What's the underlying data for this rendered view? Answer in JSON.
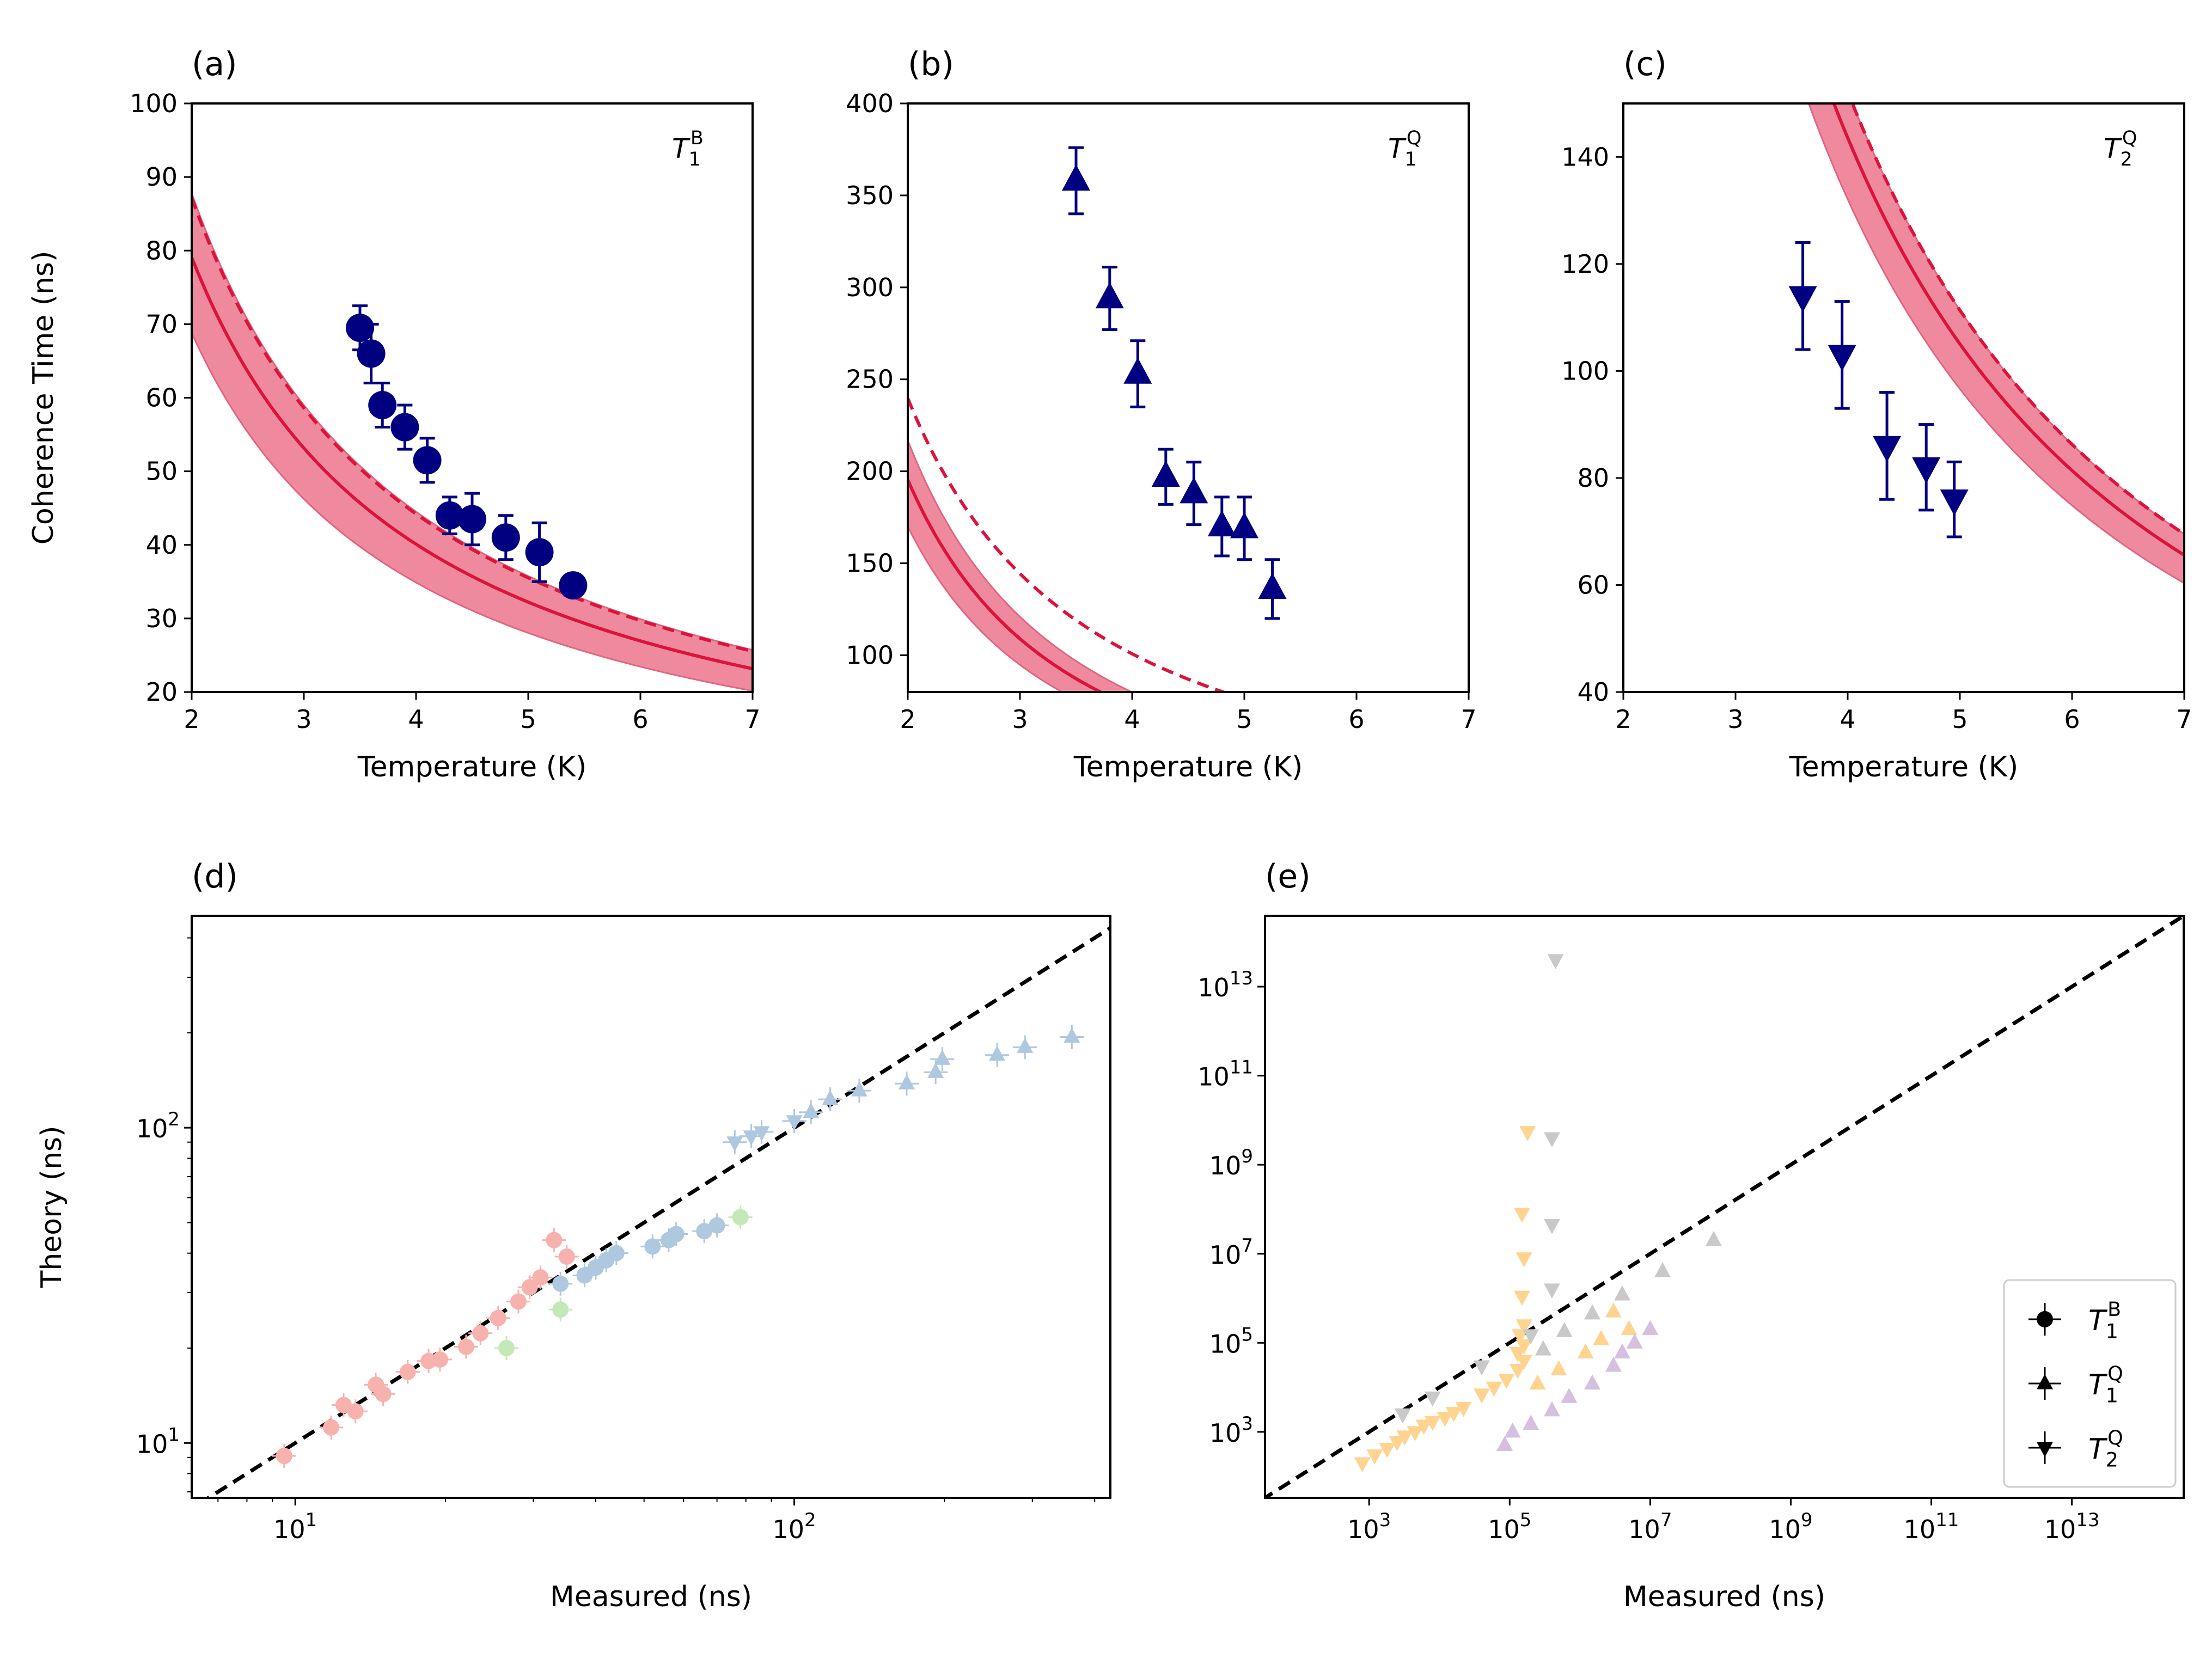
{
  "colors": {
    "fit": "#dc143c",
    "band_fill": "#ef8a9e",
    "band_edge": "#e06580",
    "data": "#000080",
    "identity": "#000000",
    "d_T1B": "#f7b2ae",
    "d_T1Q": "#aec8e0",
    "d_T2Q": "#c5e8b8",
    "e_T1B": "#ffd490",
    "e_T1Q": "#c9c9c9",
    "e_T2Q": "#d6c0e0"
  },
  "chart_data": [
    {
      "panel": "(a)",
      "type": "scatter",
      "title": "",
      "annotation": {
        "base": "T",
        "sub": "1",
        "sup": "B"
      },
      "xlabel": "Temperature (K)",
      "ylabel": "Coherence Time (ns)",
      "xlim": [
        2,
        7
      ],
      "ylim": [
        20,
        100
      ],
      "xticks": [
        2,
        3,
        4,
        5,
        6,
        7
      ],
      "yticks": [
        20,
        30,
        40,
        50,
        60,
        70,
        80,
        90,
        100
      ],
      "marker": "circle",
      "points": [
        {
          "x": 3.5,
          "y": 69.5,
          "err": 3
        },
        {
          "x": 3.6,
          "y": 66.0,
          "err": 4
        },
        {
          "x": 3.7,
          "y": 59.0,
          "err": 3
        },
        {
          "x": 3.9,
          "y": 56.0,
          "err": 3
        },
        {
          "x": 4.1,
          "y": 51.5,
          "err": 3
        },
        {
          "x": 4.3,
          "y": 44.0,
          "err": 2.5
        },
        {
          "x": 4.5,
          "y": 43.5,
          "err": 3.5
        },
        {
          "x": 4.8,
          "y": 41.0,
          "err": 3
        },
        {
          "x": 5.1,
          "y": 39.0,
          "err": 4
        },
        {
          "x": 5.4,
          "y": 34.5,
          "err": 1
        }
      ],
      "fit": {
        "A": 156,
        "n": 0.98
      },
      "band": {
        "lo": 0.87,
        "hi": 1.11
      },
      "dashed": {
        "A": 172,
        "n": 0.98
      }
    },
    {
      "panel": "(b)",
      "type": "scatter",
      "title": "",
      "annotation": {
        "base": "T",
        "sub": "1",
        "sup": "Q"
      },
      "xlabel": "Temperature (K)",
      "ylabel": "",
      "xlim": [
        2,
        7
      ],
      "ylim": [
        80,
        400
      ],
      "xticks": [
        2,
        3,
        4,
        5,
        6,
        7
      ],
      "yticks": [
        100,
        150,
        200,
        250,
        300,
        350,
        400
      ],
      "marker": "triangle-up",
      "points": [
        {
          "x": 3.5,
          "y": 358,
          "err": 18
        },
        {
          "x": 3.8,
          "y": 294,
          "err": 17
        },
        {
          "x": 4.05,
          "y": 253,
          "err": 18
        },
        {
          "x": 4.3,
          "y": 197,
          "err": 15
        },
        {
          "x": 4.55,
          "y": 188,
          "err": 17
        },
        {
          "x": 4.8,
          "y": 170,
          "err": 16
        },
        {
          "x": 5.0,
          "y": 169,
          "err": 17
        },
        {
          "x": 5.25,
          "y": 136,
          "err": 16
        }
      ],
      "fit": {
        "A": 530,
        "n": 1.44
      },
      "band": {
        "lo": 0.87,
        "hi": 1.11
      },
      "dashed": {
        "A": 570,
        "n": 1.25
      }
    },
    {
      "panel": "(c)",
      "type": "scatter",
      "title": "",
      "annotation": {
        "base": "T",
        "sub": "2",
        "sup": "Q"
      },
      "xlabel": "Temperature (K)",
      "ylabel": "",
      "xlim": [
        2,
        7
      ],
      "ylim": [
        40,
        150
      ],
      "xticks": [
        2,
        3,
        4,
        5,
        6,
        7
      ],
      "yticks": [
        40,
        60,
        80,
        100,
        120,
        140
      ],
      "marker": "triangle-down",
      "points": [
        {
          "x": 3.6,
          "y": 114,
          "err": 10
        },
        {
          "x": 3.95,
          "y": 103,
          "err": 10
        },
        {
          "x": 4.35,
          "y": 86,
          "err": 10
        },
        {
          "x": 4.7,
          "y": 82,
          "err": 8
        },
        {
          "x": 4.95,
          "y": 76,
          "err": 7
        }
      ],
      "fit": {
        "A": 1000,
        "n": 1.4
      },
      "band": {
        "lo": 0.92,
        "hi": 1.06
      },
      "dashed": {
        "A": 1060,
        "n": 1.4
      }
    },
    {
      "panel": "(d)",
      "type": "scatter",
      "xscale": "log",
      "yscale": "log",
      "xlabel": "Measured (ns)",
      "ylabel": "Theory (ns)",
      "xlim": [
        6.2,
        430
      ],
      "ylim": [
        6.7,
        470
      ],
      "xticks": [
        {
          "v": 10,
          "base": "10",
          "exp": "1"
        },
        {
          "v": 100,
          "base": "10",
          "exp": "2"
        }
      ],
      "yticks": [
        {
          "v": 10,
          "base": "10",
          "exp": "1"
        },
        {
          "v": 100,
          "base": "10",
          "exp": "2"
        }
      ],
      "identity_line": true,
      "series": [
        {
          "name": "T1B",
          "marker": "circle",
          "color_key": "d_T1B",
          "points": [
            [
              9.5,
              9.1
            ],
            [
              11.8,
              11.2
            ],
            [
              12.5,
              13.2
            ],
            [
              13.2,
              12.6
            ],
            [
              14.5,
              15.3
            ],
            [
              15.0,
              14.3
            ],
            [
              16.8,
              16.8
            ],
            [
              18.5,
              18.2
            ],
            [
              19.5,
              18.4
            ],
            [
              22,
              20.2
            ],
            [
              23.5,
              22.3
            ],
            [
              25.5,
              24.9
            ],
            [
              28,
              28.1
            ],
            [
              29.5,
              31.2
            ],
            [
              31,
              33.5
            ],
            [
              33,
              44
            ],
            [
              35,
              39
            ]
          ]
        },
        {
          "name": "T1Q",
          "marker": "circle",
          "color_key": "d_T1Q",
          "points": [
            [
              34,
              32
            ],
            [
              38,
              34
            ],
            [
              40,
              36
            ],
            [
              42,
              38
            ],
            [
              44,
              40
            ],
            [
              52,
              42
            ],
            [
              56,
              44
            ],
            [
              58,
              46
            ],
            [
              66,
              47
            ],
            [
              70,
              49
            ]
          ]
        },
        {
          "name": "T1Q",
          "marker": "triangle-up",
          "color_key": "d_T1Q",
          "points": [
            [
              108,
              112
            ],
            [
              118,
              123
            ],
            [
              135,
              131
            ],
            [
              168,
              138
            ],
            [
              192,
              150
            ],
            [
              198,
              165
            ],
            [
              255,
              170
            ],
            [
              290,
              180
            ],
            [
              360,
              194
            ]
          ]
        },
        {
          "name": "T2Q",
          "marker": "triangle-down",
          "color_key": "d_T1Q",
          "points": [
            [
              76,
              90
            ],
            [
              82,
              94
            ],
            [
              86,
              97
            ],
            [
              100,
              105
            ]
          ]
        },
        {
          "name": "T2Q",
          "marker": "circle",
          "color_key": "d_T2Q",
          "points": [
            [
              26.5,
              20
            ],
            [
              34,
              26.5
            ],
            [
              78,
              52
            ]
          ]
        }
      ]
    },
    {
      "panel": "(e)",
      "type": "scatter",
      "xscale": "log",
      "yscale": "log",
      "xlabel": "Measured (ns)",
      "ylabel": "",
      "xlim": [
        33,
        390000000000000.0
      ],
      "ylim": [
        33,
        390000000000000.0
      ],
      "xticks": [
        {
          "v": 1000.0,
          "base": "10",
          "exp": "3"
        },
        {
          "v": 100000.0,
          "base": "10",
          "exp": "5"
        },
        {
          "v": 10000000.0,
          "base": "10",
          "exp": "7"
        },
        {
          "v": 1000000000.0,
          "base": "10",
          "exp": "9"
        },
        {
          "v": 100000000000.0,
          "base": "10",
          "exp": "11"
        },
        {
          "v": 10000000000000.0,
          "base": "10",
          "exp": "13"
        }
      ],
      "yticks": [
        {
          "v": 1000.0,
          "base": "10",
          "exp": "3"
        },
        {
          "v": 100000.0,
          "base": "10",
          "exp": "5"
        },
        {
          "v": 10000000.0,
          "base": "10",
          "exp": "7"
        },
        {
          "v": 1000000000.0,
          "base": "10",
          "exp": "9"
        },
        {
          "v": 100000000000.0,
          "base": "10",
          "exp": "11"
        },
        {
          "v": 10000000000000.0,
          "base": "10",
          "exp": "13"
        }
      ],
      "identity_line": true,
      "series": [
        {
          "name": "T2Q",
          "marker": "triangle-down",
          "color_key": "e_T1B",
          "points": [
            [
              800,
              200
            ],
            [
              1200,
              300
            ],
            [
              1800,
              420
            ],
            [
              2500,
              600
            ],
            [
              3200,
              800
            ],
            [
              4500,
              1000
            ],
            [
              6000,
              1400
            ],
            [
              8000,
              1700
            ],
            [
              12000,
              2100
            ],
            [
              16000,
              2700
            ],
            [
              22000,
              3500
            ],
            [
              40000,
              7000
            ],
            [
              60000,
              10000
            ],
            [
              90000,
              15000
            ],
            [
              130000,
              25000
            ],
            [
              160000,
              40000
            ],
            [
              130000,
              60000
            ],
            [
              160000,
              90000
            ],
            [
              140000,
              150000
            ],
            [
              160000,
              250000
            ],
            [
              150000,
              1100000.0
            ],
            [
              160000,
              8000000.0
            ],
            [
              150000,
              80000000.0
            ],
            [
              180000,
              5500000000.0
            ]
          ]
        },
        {
          "name": "T1Q",
          "marker": "triangle-up",
          "color_key": "e_T1B",
          "points": [
            [
              250000,
              12000
            ],
            [
              500000,
              25000
            ],
            [
              1200000.0,
              60000
            ],
            [
              2000000.0,
              120000.0
            ],
            [
              3000000.0,
              500000.0
            ],
            [
              5000000.0,
              200000.0
            ]
          ]
        },
        {
          "name": "T2Q",
          "marker": "triangle-down",
          "color_key": "e_T1Q",
          "points": [
            [
              3000,
              2500
            ],
            [
              8000,
              6000
            ],
            [
              40000,
              30000
            ],
            [
              200000,
              150000.0
            ],
            [
              400000,
              1600000.0
            ],
            [
              400000,
              45000000.0
            ],
            [
              400000,
              4000000000.0
            ],
            [
              450000,
              40000000000000.0
            ]
          ]
        },
        {
          "name": "T1Q",
          "marker": "triangle-up",
          "color_key": "e_T1Q",
          "points": [
            [
              300000,
              70000
            ],
            [
              600000,
              180000.0
            ],
            [
              1500000.0,
              450000.0
            ],
            [
              4000000.0,
              1200000.0
            ],
            [
              15000000.0,
              4000000.0
            ],
            [
              80000000.0,
              20000000.0
            ]
          ]
        },
        {
          "name": "T1Q",
          "marker": "triangle-up",
          "color_key": "e_T2Q",
          "points": [
            [
              85000,
              500
            ],
            [
              110000,
              1000
            ],
            [
              200000,
              1500
            ],
            [
              400000,
              3000
            ],
            [
              700000,
              6000
            ],
            [
              1500000.0,
              12000
            ],
            [
              3000000.0,
              30000
            ],
            [
              4000000.0,
              60000
            ],
            [
              6000000.0,
              100000.0
            ],
            [
              10000000.0,
              200000.0
            ]
          ]
        }
      ],
      "legend": {
        "location": "lower right",
        "entries": [
          {
            "marker": "circle",
            "base": "T",
            "sub": "1",
            "sup": "B"
          },
          {
            "marker": "triangle-up",
            "base": "T",
            "sub": "1",
            "sup": "Q"
          },
          {
            "marker": "triangle-down",
            "base": "T",
            "sub": "2",
            "sup": "Q"
          }
        ]
      }
    }
  ]
}
